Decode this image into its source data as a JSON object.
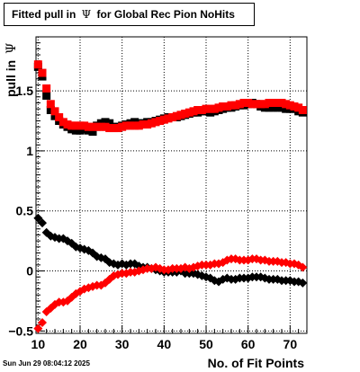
{
  "chart_data": {
    "type": "scatter",
    "title_parts": [
      "Fitted pull in",
      "Ψ",
      "for Global Rec Pion NoHits"
    ],
    "xlabel": "No. of Fit Points",
    "ylabel_parts": [
      "pull in",
      "Ψ"
    ],
    "xlim": [
      9.5,
      74
    ],
    "ylim": [
      -0.52,
      1.95
    ],
    "xticks": [
      10,
      20,
      30,
      40,
      50,
      60,
      70
    ],
    "yticks": [
      -0.5,
      0,
      0.5,
      1,
      1.5
    ],
    "ytick_labels": [
      "−0.5",
      "0",
      "0.5",
      "1",
      "1.5"
    ],
    "grid": true,
    "x": [
      10,
      11,
      12,
      13,
      14,
      15,
      16,
      17,
      18,
      19,
      20,
      21,
      22,
      23,
      24,
      25,
      26,
      27,
      28,
      29,
      30,
      31,
      32,
      33,
      34,
      35,
      36,
      37,
      38,
      39,
      40,
      41,
      42,
      43,
      44,
      45,
      46,
      47,
      48,
      49,
      50,
      51,
      52,
      53,
      54,
      55,
      56,
      57,
      58,
      59,
      60,
      61,
      62,
      63,
      64,
      65,
      66,
      67,
      68,
      69,
      70,
      71,
      72,
      73
    ],
    "series": [
      {
        "marker": "square",
        "color": "#000000",
        "values": [
          1.7,
          1.62,
          1.46,
          1.34,
          1.29,
          1.25,
          1.22,
          1.2,
          1.18,
          1.17,
          1.17,
          1.18,
          1.17,
          1.16,
          1.21,
          1.23,
          1.24,
          1.23,
          1.2,
          1.2,
          1.21,
          1.22,
          1.23,
          1.24,
          1.23,
          1.23,
          1.24,
          1.24,
          1.25,
          1.26,
          1.27,
          1.28,
          1.28,
          1.28,
          1.29,
          1.3,
          1.31,
          1.32,
          1.32,
          1.33,
          1.33,
          1.32,
          1.33,
          1.34,
          1.35,
          1.36,
          1.36,
          1.37,
          1.38,
          1.38,
          1.39,
          1.4,
          1.39,
          1.37,
          1.36,
          1.36,
          1.36,
          1.36,
          1.36,
          1.35,
          1.35,
          1.35,
          1.33,
          1.32
        ]
      },
      {
        "marker": "square",
        "color": "#ff0000",
        "values": [
          1.72,
          1.65,
          1.52,
          1.39,
          1.33,
          1.28,
          1.24,
          1.22,
          1.21,
          1.21,
          1.21,
          1.21,
          1.2,
          1.2,
          1.2,
          1.2,
          1.2,
          1.19,
          1.19,
          1.19,
          1.2,
          1.21,
          1.21,
          1.21,
          1.21,
          1.22,
          1.22,
          1.23,
          1.24,
          1.25,
          1.26,
          1.27,
          1.28,
          1.29,
          1.3,
          1.31,
          1.32,
          1.33,
          1.34,
          1.34,
          1.35,
          1.35,
          1.35,
          1.36,
          1.37,
          1.37,
          1.38,
          1.38,
          1.39,
          1.4,
          1.4,
          1.39,
          1.39,
          1.39,
          1.39,
          1.4,
          1.4,
          1.4,
          1.4,
          1.39,
          1.38,
          1.37,
          1.36,
          1.34
        ]
      },
      {
        "marker": "diamond",
        "color": "#000000",
        "values": [
          0.44,
          0.4,
          0.32,
          0.29,
          0.28,
          0.27,
          0.27,
          0.25,
          0.23,
          0.2,
          0.19,
          0.18,
          0.17,
          0.15,
          0.12,
          0.11,
          0.1,
          0.07,
          0.06,
          0.05,
          0.06,
          0.05,
          0.06,
          0.06,
          0.04,
          0.03,
          0.03,
          0.02,
          0.01,
          0.0,
          -0.01,
          -0.01,
          -0.01,
          -0.01,
          0.0,
          -0.02,
          -0.02,
          -0.02,
          -0.03,
          -0.04,
          -0.05,
          -0.06,
          -0.08,
          -0.09,
          -0.07,
          -0.06,
          -0.07,
          -0.07,
          -0.06,
          -0.06,
          -0.06,
          -0.05,
          -0.05,
          -0.05,
          -0.06,
          -0.07,
          -0.07,
          -0.07,
          -0.08,
          -0.08,
          -0.08,
          -0.09,
          -0.09,
          -0.1
        ]
      },
      {
        "marker": "diamond",
        "color": "#ff0000",
        "values": [
          -0.48,
          -0.43,
          -0.34,
          -0.31,
          -0.28,
          -0.26,
          -0.26,
          -0.25,
          -0.22,
          -0.19,
          -0.17,
          -0.15,
          -0.14,
          -0.13,
          -0.12,
          -0.12,
          -0.1,
          -0.07,
          -0.04,
          -0.03,
          -0.02,
          -0.02,
          -0.01,
          -0.01,
          0.0,
          0.01,
          0.02,
          0.02,
          0.03,
          0.02,
          0.01,
          0.01,
          0.02,
          0.02,
          0.02,
          0.03,
          0.02,
          0.03,
          0.04,
          0.05,
          0.05,
          0.05,
          0.06,
          0.06,
          0.07,
          0.09,
          0.1,
          0.1,
          0.09,
          0.09,
          0.09,
          0.1,
          0.1,
          0.09,
          0.09,
          0.08,
          0.08,
          0.08,
          0.07,
          0.07,
          0.06,
          0.06,
          0.05,
          0.03
        ]
      }
    ]
  },
  "footer_text": "Sun Jun 29 08:04:12 2025"
}
